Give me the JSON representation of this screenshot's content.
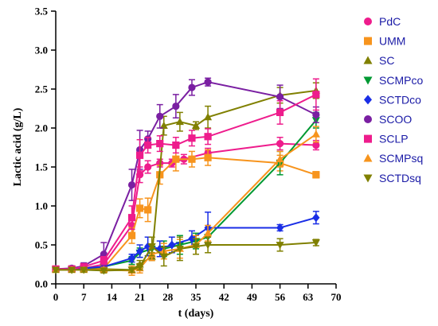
{
  "chart_data": {
    "type": "line",
    "xlabel": "t (days)",
    "ylabel": "Lactic acid (g/L)",
    "xlim": [
      0,
      70
    ],
    "ylim": [
      0,
      3.5
    ],
    "xticks": [
      0,
      7,
      14,
      21,
      28,
      35,
      42,
      49,
      56,
      63,
      70
    ],
    "yticks": [
      0.0,
      0.5,
      1.0,
      1.5,
      2.0,
      2.5,
      3.0,
      3.5
    ],
    "ytick_labels": [
      "0.0",
      "0.5",
      "1.0",
      "1.5",
      "2.0",
      "2.5",
      "3.0",
      "3.5"
    ],
    "xtick_labels": [
      "0",
      "7",
      "14",
      "21",
      "28",
      "35",
      "42",
      "49",
      "56",
      "63",
      "70"
    ],
    "grid": false,
    "legend_position": "right",
    "series": [
      {
        "name": "PdC",
        "color": "#ee1c8c",
        "marker": "circle",
        "x": [
          0,
          4,
          7,
          12,
          19,
          21,
          23,
          26,
          29,
          32,
          38,
          56,
          65
        ],
        "y": [
          0.19,
          0.19,
          0.2,
          0.25,
          0.75,
          1.4,
          1.5,
          1.55,
          1.55,
          1.6,
          1.68,
          1.8,
          1.78
        ],
        "err": [
          0.03,
          0.03,
          0.03,
          0.05,
          0.1,
          0.1,
          0.08,
          0.05,
          0.05,
          0.06,
          0.06,
          0.08,
          0.06
        ]
      },
      {
        "name": "UMM",
        "color": "#f7941d",
        "marker": "square",
        "x": [
          0,
          4,
          7,
          12,
          19,
          21,
          23,
          26,
          30,
          34,
          38,
          56,
          65
        ],
        "y": [
          0.19,
          0.19,
          0.19,
          0.2,
          0.62,
          0.97,
          0.95,
          1.4,
          1.6,
          1.6,
          1.62,
          1.55,
          1.4
        ],
        "err": [
          0.03,
          0.03,
          0.03,
          0.04,
          0.1,
          0.12,
          0.15,
          0.12,
          0.15,
          0.1,
          0.1,
          0.1,
          0.04
        ]
      },
      {
        "name": "SC",
        "color": "#808000",
        "marker": "triangle-up",
        "x": [
          0,
          4,
          7,
          12,
          19,
          21,
          24,
          27,
          31,
          35,
          38,
          56,
          65
        ],
        "y": [
          0.19,
          0.19,
          0.19,
          0.19,
          0.18,
          0.25,
          0.35,
          2.03,
          2.08,
          2.03,
          2.14,
          2.42,
          2.48
        ],
        "err": [
          0.03,
          0.03,
          0.03,
          0.03,
          0.03,
          0.05,
          0.05,
          0.12,
          0.12,
          0.05,
          0.14,
          0.1,
          0.1
        ]
      },
      {
        "name": "SCMPco",
        "color": "#009933",
        "marker": "triangle-down",
        "x": [
          0,
          4,
          7,
          12,
          19,
          21,
          24,
          27,
          31,
          35,
          38,
          56,
          65
        ],
        "y": [
          0.18,
          0.18,
          0.2,
          0.22,
          0.3,
          0.4,
          0.45,
          0.45,
          0.5,
          0.55,
          0.6,
          1.55,
          2.1
        ],
        "err": [
          0.03,
          0.03,
          0.03,
          0.04,
          0.05,
          0.06,
          0.06,
          0.1,
          0.12,
          0.1,
          0.1,
          0.15,
          0.1
        ]
      },
      {
        "name": "SCTDco",
        "color": "#1a2ee6",
        "marker": "diamond",
        "x": [
          0,
          4,
          7,
          12,
          19,
          21,
          23,
          26,
          29,
          34,
          38,
          56,
          65
        ],
        "y": [
          0.19,
          0.19,
          0.2,
          0.22,
          0.33,
          0.42,
          0.48,
          0.45,
          0.5,
          0.58,
          0.72,
          0.72,
          0.85
        ],
        "err": [
          0.03,
          0.03,
          0.03,
          0.04,
          0.05,
          0.08,
          0.12,
          0.1,
          0.1,
          0.1,
          0.2,
          0.04,
          0.08
        ]
      },
      {
        "name": "SCOO",
        "color": "#7a1fa2",
        "marker": "circle",
        "x": [
          0,
          4,
          7,
          12,
          19,
          21,
          23,
          26,
          30,
          34,
          38,
          56,
          65
        ],
        "y": [
          0.19,
          0.2,
          0.23,
          0.38,
          1.27,
          1.72,
          1.86,
          2.15,
          2.28,
          2.52,
          2.59,
          2.4,
          2.17
        ],
        "err": [
          0.03,
          0.03,
          0.04,
          0.15,
          0.2,
          0.25,
          0.1,
          0.15,
          0.15,
          0.1,
          0.05,
          0.15,
          0.1
        ]
      },
      {
        "name": "SCLP",
        "color": "#ee1c8c",
        "marker": "square",
        "x": [
          0,
          4,
          7,
          12,
          19,
          21,
          23,
          26,
          30,
          34,
          38,
          56,
          65
        ],
        "y": [
          0.19,
          0.19,
          0.22,
          0.3,
          0.85,
          1.65,
          1.78,
          1.8,
          1.78,
          1.87,
          1.89,
          2.2,
          2.43
        ],
        "err": [
          0.03,
          0.03,
          0.03,
          0.05,
          0.15,
          0.2,
          0.1,
          0.1,
          0.1,
          0.1,
          0.1,
          0.15,
          0.2
        ]
      },
      {
        "name": "SCMPsq",
        "color": "#f7941d",
        "marker": "triangle-up",
        "x": [
          0,
          4,
          7,
          12,
          19,
          21,
          24,
          27,
          31,
          35,
          38,
          56,
          65
        ],
        "y": [
          0.18,
          0.18,
          0.18,
          0.18,
          0.17,
          0.2,
          0.38,
          0.42,
          0.45,
          0.5,
          0.65,
          1.6,
          1.92
        ],
        "err": [
          0.03,
          0.03,
          0.03,
          0.03,
          0.06,
          0.06,
          0.08,
          0.1,
          0.12,
          0.12,
          0.1,
          0.1,
          0.1
        ]
      },
      {
        "name": "SCTDsq",
        "color": "#808000",
        "marker": "triangle-down",
        "x": [
          0,
          4,
          7,
          12,
          19,
          21,
          24,
          27,
          31,
          35,
          38,
          56,
          65
        ],
        "y": [
          0.18,
          0.18,
          0.18,
          0.17,
          0.18,
          0.22,
          0.48,
          0.35,
          0.45,
          0.48,
          0.5,
          0.5,
          0.53
        ],
        "err": [
          0.03,
          0.03,
          0.03,
          0.03,
          0.03,
          0.04,
          0.12,
          0.12,
          0.15,
          0.1,
          0.1,
          0.08,
          0.04
        ]
      }
    ]
  }
}
